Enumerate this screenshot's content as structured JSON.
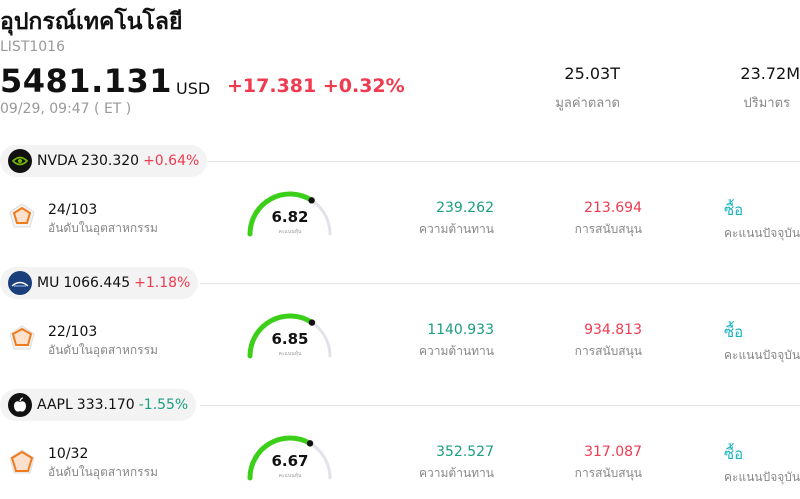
{
  "header": {
    "title": "อุปกรณ์เทคโนโลยี",
    "code": "LIST1016",
    "price": "5481.131",
    "currency": "USD",
    "change": "+17.381 +0.32%",
    "time": "09/29, 09:47  ( ET )",
    "market_cap_value": "25.03T",
    "market_cap_label": "มูลค่าตลาด",
    "volume_value": "23.72M",
    "volume_label": "ปริมาตร"
  },
  "colors": {
    "up": "#ef3a50",
    "down": "#1a9e80",
    "buy": "#19b3c0",
    "gauge_green": "#3ccf1a",
    "gauge_track": "#e2e2ea"
  },
  "stocks": [
    {
      "ticker": "NVDA",
      "price": "230.320",
      "change": "+0.64%",
      "direction": "up",
      "logo_icon": "nvidia-logo-icon",
      "rank": "24/103",
      "rank_label": "อันดับในอุตสาหกรรม",
      "score": "6.82",
      "score_fraction": 0.682,
      "score_label": "คะแนนหุ้น",
      "resistance": "239.262",
      "resistance_label": "ความต้านทาน",
      "support": "213.694",
      "support_label": "การสนับสนุน",
      "rating": "ซื้อ",
      "rating_label": "คะแนนปัจจุบัน"
    },
    {
      "ticker": "MU",
      "price": "1066.445",
      "change": "+1.18%",
      "direction": "up",
      "logo_icon": "micron-logo-icon",
      "rank": "22/103",
      "rank_label": "อันดับในอุตสาหกรรม",
      "score": "6.85",
      "score_fraction": 0.685,
      "score_label": "คะแนนหุ้น",
      "resistance": "1140.933",
      "resistance_label": "ความต้านทาน",
      "support": "934.813",
      "support_label": "การสนับสนุน",
      "rating": "ซื้อ",
      "rating_label": "คะแนนปัจจุบัน"
    },
    {
      "ticker": "AAPL",
      "price": "333.170",
      "change": "-1.55%",
      "direction": "down",
      "logo_icon": "apple-logo-icon",
      "rank": "10/32",
      "rank_label": "อันดับในอุตสาหกรรม",
      "score": "6.67",
      "score_fraction": 0.667,
      "score_label": "คะแนนหุ้น",
      "resistance": "352.527",
      "resistance_label": "ความต้านทาน",
      "support": "317.087",
      "support_label": "การสนับสนุน",
      "rating": "ซื้อ",
      "rating_label": "คะแนนปัจจุบัน"
    }
  ]
}
